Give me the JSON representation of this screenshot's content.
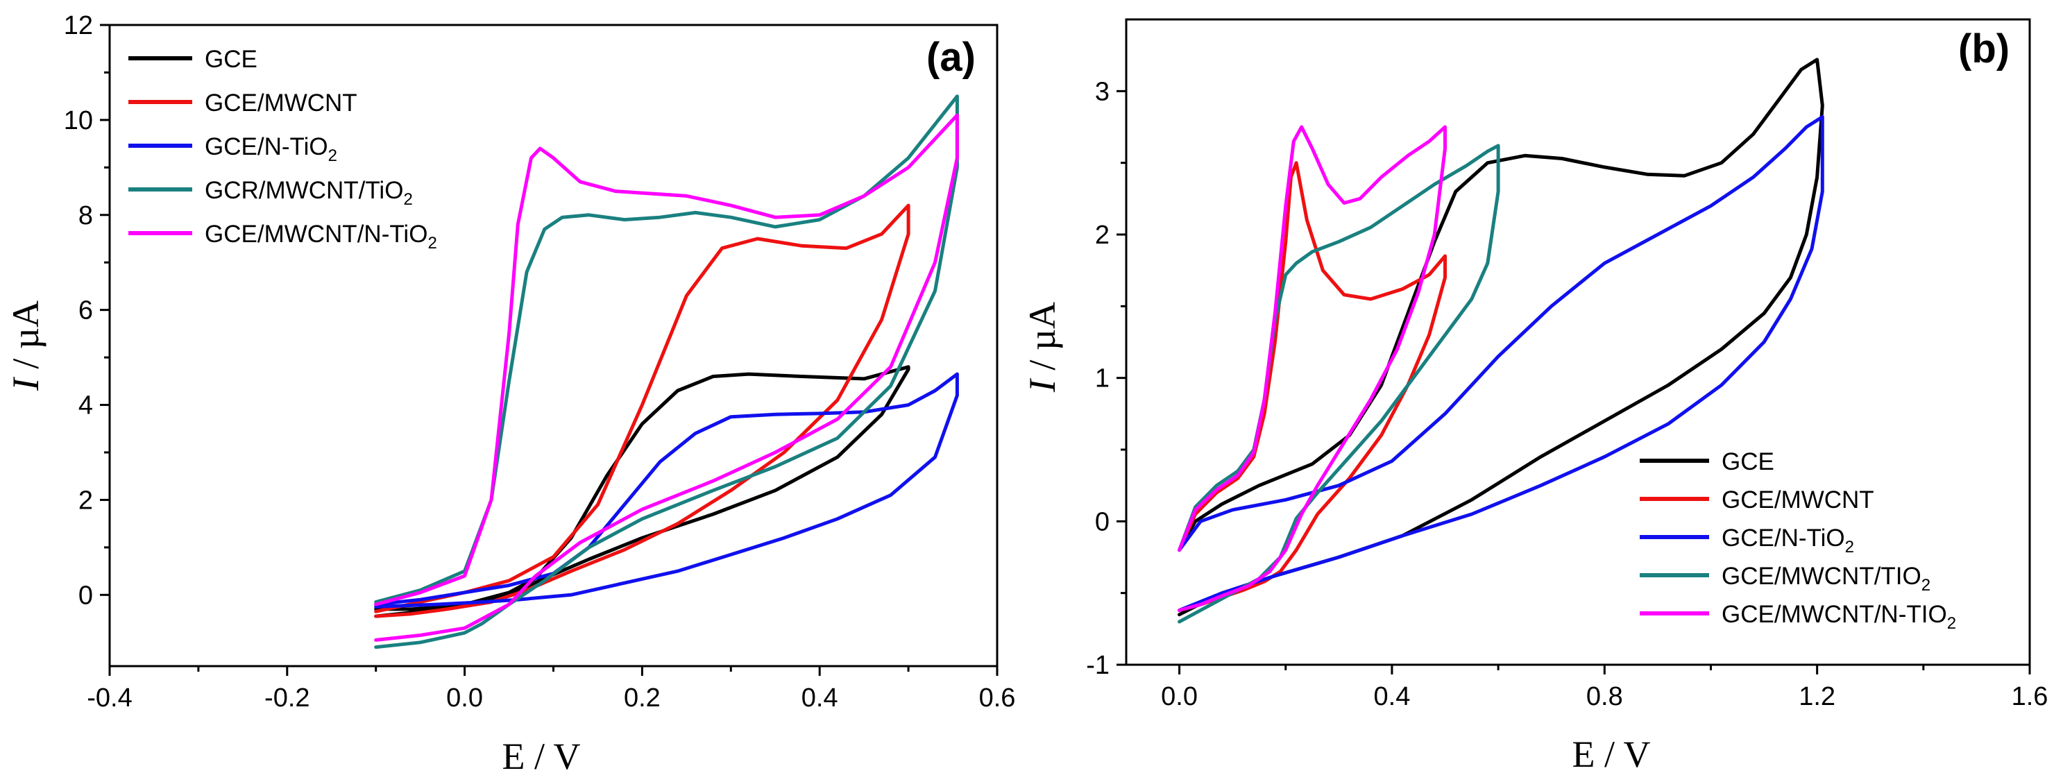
{
  "chart_data": [
    {
      "type": "line",
      "panel_label": "(a)",
      "xlabel": "E / V",
      "ylabel_italic": "I",
      "ylabel_rest": " / µA",
      "xlim": [
        -0.4,
        0.6
      ],
      "ylim": [
        -1.5,
        12
      ],
      "xticks": [
        -0.4,
        -0.2,
        0.0,
        0.2,
        0.4,
        0.6
      ],
      "xtick_labels": [
        "-0.4",
        "-0.2",
        "0.0",
        "0.2",
        "0.4",
        "0.6"
      ],
      "yticks": [
        0,
        2,
        4,
        6,
        8,
        10,
        12
      ],
      "ytick_labels": [
        "0",
        "2",
        "4",
        "6",
        "8",
        "10",
        "12"
      ],
      "legend_position": "top-left",
      "series": [
        {
          "name": "GCE",
          "subscript": "",
          "color": "#000000",
          "x": [
            -0.1,
            -0.05,
            0.0,
            0.05,
            0.08,
            0.12,
            0.16,
            0.2,
            0.24,
            0.28,
            0.32,
            0.38,
            0.45,
            0.5,
            0.5,
            0.47,
            0.42,
            0.35,
            0.28,
            0.2,
            0.14,
            0.09,
            0.05,
            0.02,
            -0.02,
            -0.06,
            -0.1
          ],
          "y": [
            -0.45,
            -0.35,
            -0.2,
            0.05,
            0.35,
            1.2,
            2.5,
            3.6,
            4.3,
            4.6,
            4.65,
            4.6,
            4.55,
            4.8,
            4.75,
            3.8,
            2.9,
            2.2,
            1.7,
            1.2,
            0.75,
            0.35,
            0.0,
            -0.15,
            -0.25,
            -0.3,
            -0.3
          ]
        },
        {
          "name": "GCE/MWCNT",
          "subscript": "",
          "color": "#ee1111",
          "x": [
            -0.1,
            -0.05,
            0.0,
            0.05,
            0.1,
            0.15,
            0.2,
            0.25,
            0.29,
            0.33,
            0.38,
            0.43,
            0.47,
            0.5,
            0.5,
            0.47,
            0.42,
            0.36,
            0.3,
            0.24,
            0.18,
            0.12,
            0.07,
            0.03,
            -0.02,
            -0.06,
            -0.1
          ],
          "y": [
            -0.35,
            -0.15,
            0.05,
            0.3,
            0.8,
            1.9,
            4.0,
            6.3,
            7.3,
            7.5,
            7.35,
            7.3,
            7.6,
            8.2,
            7.6,
            5.8,
            4.1,
            3.0,
            2.2,
            1.5,
            0.95,
            0.5,
            0.1,
            -0.15,
            -0.3,
            -0.4,
            -0.45
          ]
        },
        {
          "name": "GCE/N-TiO",
          "subscript": "2",
          "color": "#1010ee",
          "x": [
            -0.1,
            -0.05,
            0.0,
            0.05,
            0.1,
            0.14,
            0.18,
            0.22,
            0.26,
            0.3,
            0.35,
            0.4,
            0.45,
            0.5,
            0.53,
            0.555,
            0.555,
            0.53,
            0.48,
            0.42,
            0.36,
            0.3,
            0.24,
            0.18,
            0.12,
            0.06,
            0.02,
            -0.03,
            -0.1
          ],
          "y": [
            -0.2,
            -0.1,
            0.05,
            0.2,
            0.45,
            1.0,
            1.9,
            2.8,
            3.4,
            3.75,
            3.8,
            3.82,
            3.85,
            4.0,
            4.3,
            4.65,
            4.2,
            2.9,
            2.1,
            1.6,
            1.2,
            0.85,
            0.5,
            0.25,
            0.0,
            -0.1,
            -0.15,
            -0.2,
            -0.25
          ]
        },
        {
          "name": "GCR/MWCNT/TiO",
          "subscript": "2",
          "color": "#1a8080",
          "x": [
            -0.1,
            -0.05,
            0.0,
            0.03,
            0.05,
            0.07,
            0.09,
            0.11,
            0.14,
            0.18,
            0.22,
            0.26,
            0.3,
            0.35,
            0.4,
            0.45,
            0.5,
            0.555,
            0.555,
            0.53,
            0.48,
            0.42,
            0.35,
            0.28,
            0.2,
            0.14,
            0.09,
            0.05,
            0.02,
            0.0,
            -0.05,
            -0.1
          ],
          "y": [
            -0.15,
            0.1,
            0.5,
            2.0,
            4.5,
            6.8,
            7.7,
            7.95,
            8.0,
            7.9,
            7.95,
            8.05,
            7.95,
            7.75,
            7.9,
            8.4,
            9.2,
            10.5,
            9.0,
            6.4,
            4.4,
            3.3,
            2.7,
            2.2,
            1.6,
            1.0,
            0.3,
            -0.2,
            -0.6,
            -0.8,
            -1.0,
            -1.1
          ]
        },
        {
          "name": "GCE/MWCNT/N-TiO",
          "subscript": "2",
          "color": "#ff00ff",
          "x": [
            -0.1,
            -0.05,
            0.0,
            0.03,
            0.05,
            0.06,
            0.075,
            0.085,
            0.1,
            0.13,
            0.17,
            0.21,
            0.25,
            0.3,
            0.35,
            0.4,
            0.45,
            0.5,
            0.555,
            0.555,
            0.53,
            0.48,
            0.42,
            0.35,
            0.28,
            0.2,
            0.13,
            0.08,
            0.05,
            0.02,
            0.0,
            -0.05,
            -0.1
          ],
          "y": [
            -0.2,
            0.05,
            0.4,
            2.0,
            5.5,
            7.8,
            9.2,
            9.4,
            9.2,
            8.7,
            8.5,
            8.45,
            8.4,
            8.2,
            7.95,
            8.0,
            8.4,
            9.0,
            10.1,
            9.2,
            7.0,
            4.8,
            3.7,
            3.0,
            2.4,
            1.8,
            1.1,
            0.4,
            -0.2,
            -0.5,
            -0.7,
            -0.85,
            -0.95
          ]
        }
      ]
    },
    {
      "type": "line",
      "panel_label": "(b)",
      "xlabel": "E / V",
      "ylabel_italic": "I",
      "ylabel_rest": " / µA",
      "xlim": [
        -0.1,
        1.6
      ],
      "ylim": [
        -1.0,
        3.5
      ],
      "xticks": [
        0.0,
        0.4,
        0.8,
        1.2,
        1.6
      ],
      "xtick_labels": [
        "0.0",
        "0.4",
        "0.8",
        "1.2",
        "1.6"
      ],
      "yticks": [
        -1,
        0,
        1,
        2,
        3
      ],
      "ytick_labels": [
        "-1",
        "0",
        "1",
        "2",
        "3"
      ],
      "legend_position": "bottom-right",
      "series": [
        {
          "name": "GCE",
          "subscript": "",
          "color": "#000000",
          "x": [
            0.0,
            0.03,
            0.08,
            0.15,
            0.25,
            0.32,
            0.38,
            0.43,
            0.48,
            0.52,
            0.58,
            0.65,
            0.72,
            0.8,
            0.88,
            0.95,
            1.02,
            1.08,
            1.13,
            1.17,
            1.2,
            1.21,
            1.2,
            1.18,
            1.15,
            1.1,
            1.02,
            0.92,
            0.8,
            0.68,
            0.55,
            0.42,
            0.3,
            0.18,
            0.08,
            0.0
          ],
          "y": [
            -0.2,
            0.0,
            0.12,
            0.25,
            0.4,
            0.6,
            0.95,
            1.45,
            1.95,
            2.3,
            2.5,
            2.55,
            2.53,
            2.47,
            2.42,
            2.41,
            2.5,
            2.7,
            2.95,
            3.15,
            3.22,
            2.9,
            2.4,
            2.0,
            1.7,
            1.45,
            1.2,
            0.95,
            0.7,
            0.45,
            0.15,
            -0.1,
            -0.25,
            -0.38,
            -0.5,
            -0.65
          ]
        },
        {
          "name": "GCE/MWCNT",
          "subscript": "",
          "color": "#ee1111",
          "x": [
            0.0,
            0.03,
            0.07,
            0.11,
            0.14,
            0.16,
            0.18,
            0.2,
            0.21,
            0.22,
            0.24,
            0.27,
            0.31,
            0.36,
            0.42,
            0.47,
            0.5,
            0.5,
            0.47,
            0.43,
            0.38,
            0.32,
            0.26,
            0.22,
            0.19,
            0.16,
            0.12,
            0.08,
            0.04,
            0.0
          ],
          "y": [
            -0.2,
            0.05,
            0.2,
            0.3,
            0.45,
            0.75,
            1.25,
            1.95,
            2.4,
            2.5,
            2.1,
            1.75,
            1.58,
            1.55,
            1.62,
            1.72,
            1.85,
            1.7,
            1.3,
            0.95,
            0.6,
            0.3,
            0.05,
            -0.2,
            -0.35,
            -0.42,
            -0.48,
            -0.53,
            -0.58,
            -0.62
          ]
        },
        {
          "name": "GCE/N-TiO",
          "subscript": "2",
          "color": "#1010ee",
          "x": [
            0.0,
            0.04,
            0.1,
            0.2,
            0.3,
            0.4,
            0.5,
            0.6,
            0.7,
            0.8,
            0.9,
            1.0,
            1.08,
            1.14,
            1.18,
            1.21,
            1.21,
            1.19,
            1.15,
            1.1,
            1.02,
            0.92,
            0.8,
            0.68,
            0.55,
            0.42,
            0.3,
            0.18,
            0.08,
            0.0
          ],
          "y": [
            -0.2,
            0.0,
            0.08,
            0.15,
            0.25,
            0.42,
            0.75,
            1.15,
            1.5,
            1.8,
            2.0,
            2.2,
            2.4,
            2.6,
            2.75,
            2.82,
            2.3,
            1.9,
            1.55,
            1.25,
            0.95,
            0.68,
            0.45,
            0.25,
            0.05,
            -0.1,
            -0.25,
            -0.38,
            -0.5,
            -0.62
          ]
        },
        {
          "name": "GCE/MWCNT/TIO",
          "subscript": "2",
          "color": "#1a8080",
          "x": [
            0.0,
            0.03,
            0.07,
            0.11,
            0.14,
            0.16,
            0.18,
            0.2,
            0.22,
            0.25,
            0.3,
            0.36,
            0.42,
            0.48,
            0.54,
            0.58,
            0.6,
            0.6,
            0.58,
            0.55,
            0.5,
            0.44,
            0.38,
            0.32,
            0.26,
            0.22,
            0.19,
            0.15,
            0.1,
            0.05,
            0.0
          ],
          "y": [
            -0.2,
            0.1,
            0.25,
            0.35,
            0.5,
            0.85,
            1.4,
            1.72,
            1.8,
            1.88,
            1.95,
            2.05,
            2.2,
            2.35,
            2.48,
            2.58,
            2.62,
            2.3,
            1.8,
            1.55,
            1.3,
            1.0,
            0.7,
            0.45,
            0.2,
            0.02,
            -0.25,
            -0.4,
            -0.5,
            -0.6,
            -0.7
          ]
        },
        {
          "name": "GCE/MWCNT/N-TIO",
          "subscript": "2",
          "color": "#ff00ff",
          "x": [
            0.0,
            0.03,
            0.07,
            0.11,
            0.14,
            0.16,
            0.18,
            0.2,
            0.215,
            0.23,
            0.25,
            0.28,
            0.31,
            0.34,
            0.38,
            0.43,
            0.47,
            0.5,
            0.5,
            0.48,
            0.45,
            0.41,
            0.36,
            0.31,
            0.26,
            0.23,
            0.2,
            0.17,
            0.13,
            0.08,
            0.04,
            0.0
          ],
          "y": [
            -0.2,
            0.08,
            0.22,
            0.32,
            0.48,
            0.85,
            1.45,
            2.2,
            2.65,
            2.75,
            2.6,
            2.35,
            2.22,
            2.25,
            2.4,
            2.55,
            2.65,
            2.75,
            2.6,
            2.0,
            1.6,
            1.2,
            0.85,
            0.55,
            0.25,
            0.05,
            -0.2,
            -0.35,
            -0.45,
            -0.52,
            -0.58,
            -0.62
          ]
        }
      ]
    }
  ]
}
